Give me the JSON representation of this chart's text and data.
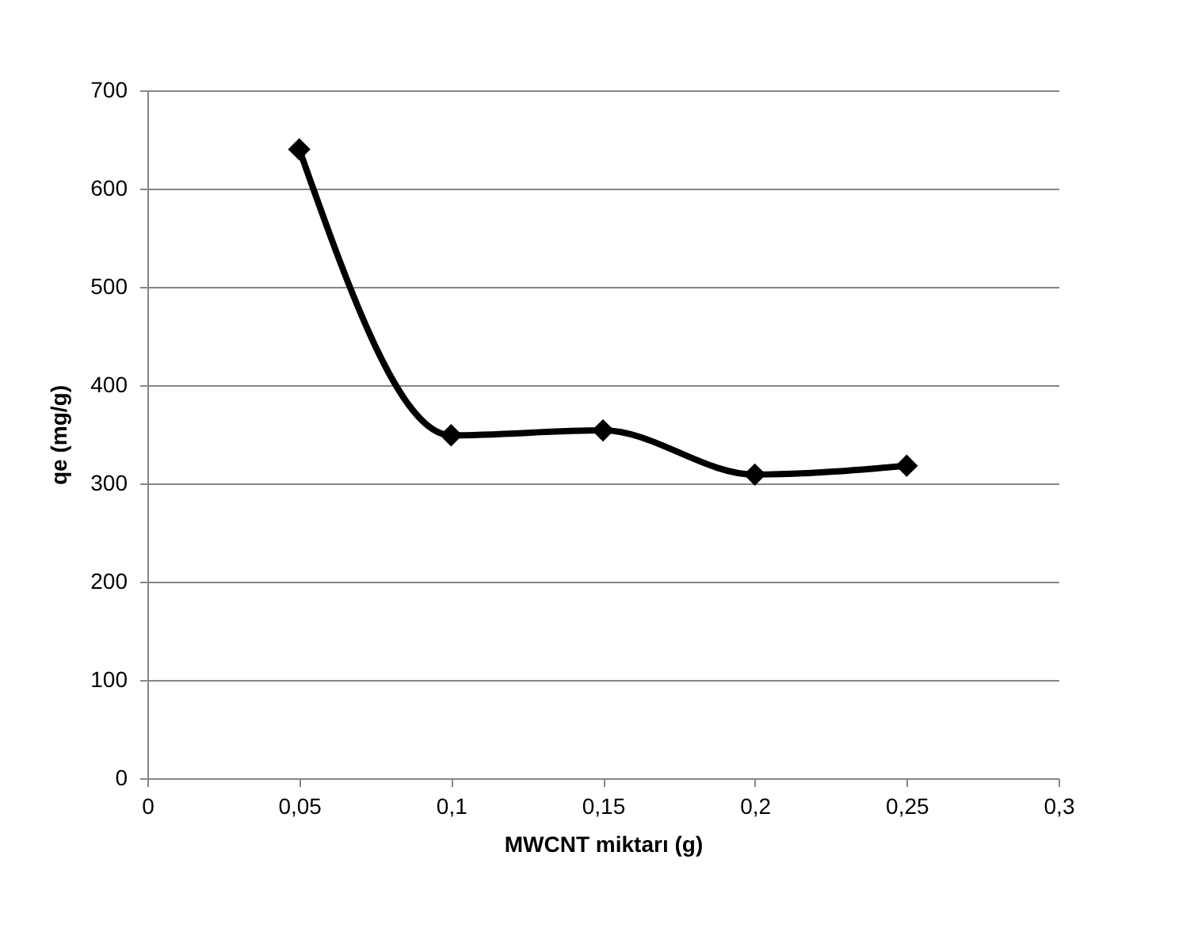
{
  "chart_data": {
    "type": "line",
    "xlabel": "MWCNT miktarı (g)",
    "ylabel": "qe (mg/g)",
    "x": [
      0.05,
      0.1,
      0.15,
      0.2,
      0.25
    ],
    "series": [
      {
        "color": "#000000",
        "values": [
          640,
          349,
          354,
          309,
          318
        ]
      }
    ],
    "xlim": [
      0,
      0.3
    ],
    "xticks": [
      {
        "value": 0,
        "label": "0"
      },
      {
        "value": 0.05,
        "label": "0,05"
      },
      {
        "value": 0.1,
        "label": "0,1"
      },
      {
        "value": 0.15,
        "label": "0,15"
      },
      {
        "value": 0.2,
        "label": "0,2"
      },
      {
        "value": 0.25,
        "label": "0,25"
      },
      {
        "value": 0.3,
        "label": "0,3"
      }
    ],
    "ylim": [
      0,
      700
    ],
    "yticks": [
      0,
      100,
      200,
      300,
      400,
      500,
      600,
      700
    ],
    "grid": "y",
    "marker": "diamond",
    "line_style": "solid",
    "legend": false
  }
}
